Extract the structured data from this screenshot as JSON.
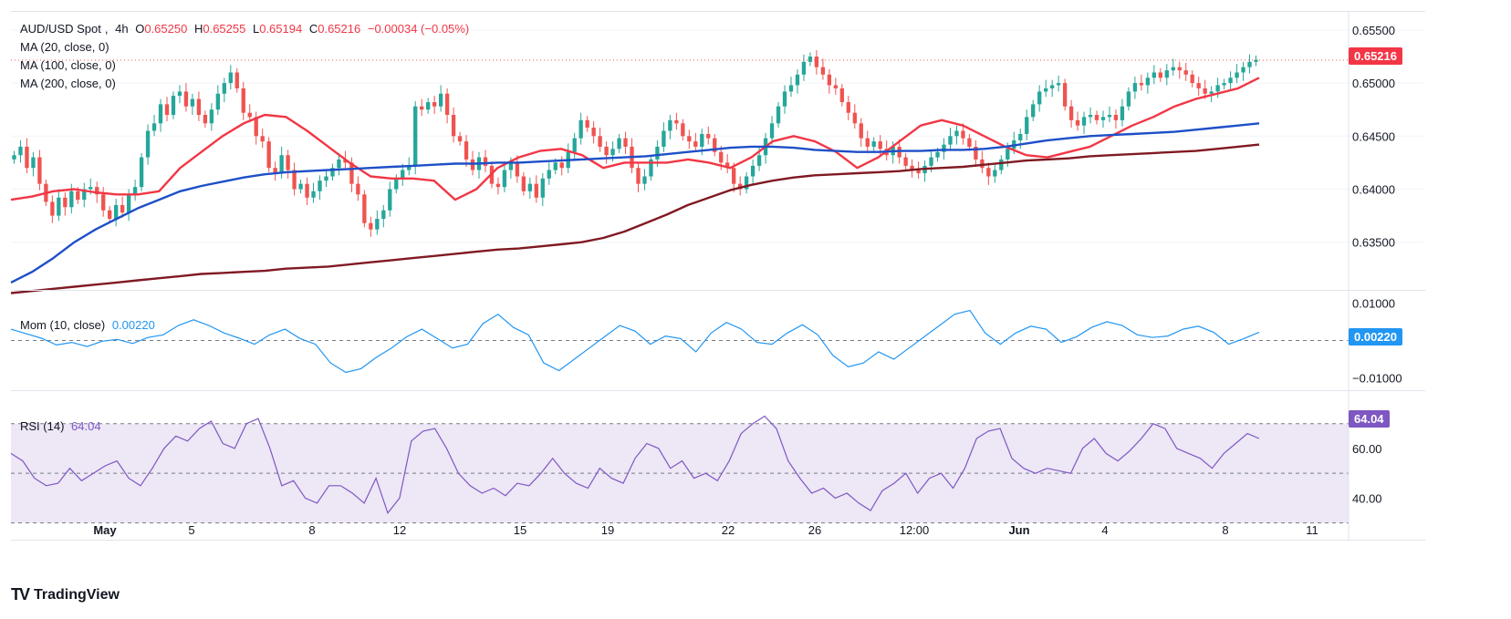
{
  "header": {
    "symbol": "AUD/USD Spot",
    "interval": "4h",
    "open_label": "O",
    "open": "0.65250",
    "high_label": "H",
    "high": "0.65255",
    "low_label": "L",
    "low": "0.65194",
    "close_label": "C",
    "close": "0.65216",
    "change": "−0.00034 (−0.05%)"
  },
  "indicators": {
    "ma20": "MA (20, close, 0)",
    "ma100": "MA (100, close, 0)",
    "ma200": "MA (200, close, 0)",
    "mom_label": "Mom (10, close)",
    "mom_value": "0.00220",
    "rsi_label": "RSI (14)",
    "rsi_value": "64.04"
  },
  "price_tags": {
    "last_price": "0.65216",
    "mom_last": "0.00220",
    "rsi_last": "64.04"
  },
  "brand": {
    "name": "TradingView"
  },
  "colors": {
    "up": "#26a69a",
    "down": "#ef5350",
    "ma20": "#f23645",
    "ma100": "#1e4fc8",
    "ma200": "#801922",
    "momentum": "#2196f3",
    "rsi": "#7e57c2",
    "rsi_band": "#ede7f6"
  },
  "chart_data": [
    {
      "type": "candlestick",
      "title": "AUD/USD Spot, 4h",
      "x_ticks": [
        "May",
        "5",
        "8",
        "12",
        "15",
        "19",
        "22",
        "26",
        "12:00",
        "Jun",
        "4",
        "8",
        "11"
      ],
      "y_ticks": [
        "0.63500",
        "0.64000",
        "0.64500",
        "0.65000",
        "0.65500"
      ],
      "ylim": [
        0.6305,
        0.6568
      ],
      "last_price": 0.65216,
      "closes": [
        0.6432,
        0.644,
        0.642,
        0.643,
        0.6405,
        0.6388,
        0.6375,
        0.6392,
        0.6383,
        0.6398,
        0.639,
        0.64,
        0.6402,
        0.6395,
        0.638,
        0.6372,
        0.6385,
        0.6378,
        0.6395,
        0.6402,
        0.643,
        0.6455,
        0.6462,
        0.648,
        0.647,
        0.6488,
        0.6492,
        0.6478,
        0.6485,
        0.647,
        0.6462,
        0.6475,
        0.649,
        0.65,
        0.651,
        0.6495,
        0.6472,
        0.6468,
        0.645,
        0.6445,
        0.642,
        0.6415,
        0.6432,
        0.6418,
        0.64,
        0.6405,
        0.6392,
        0.6398,
        0.6408,
        0.6412,
        0.642,
        0.6428,
        0.6425,
        0.6405,
        0.6395,
        0.6368,
        0.6362,
        0.6372,
        0.638,
        0.64,
        0.641,
        0.6418,
        0.6422,
        0.6478,
        0.6475,
        0.6482,
        0.6478,
        0.649,
        0.647,
        0.645,
        0.6445,
        0.6428,
        0.6418,
        0.643,
        0.6422,
        0.6405,
        0.6402,
        0.6418,
        0.6425,
        0.6412,
        0.6398,
        0.6405,
        0.6392,
        0.641,
        0.6418,
        0.6425,
        0.642,
        0.6435,
        0.6448,
        0.6465,
        0.6458,
        0.645,
        0.644,
        0.6432,
        0.6438,
        0.6448,
        0.644,
        0.642,
        0.6405,
        0.6412,
        0.6428,
        0.644,
        0.6455,
        0.6465,
        0.6462,
        0.645,
        0.6445,
        0.644,
        0.6452,
        0.6448,
        0.6435,
        0.6425,
        0.642,
        0.6405,
        0.64,
        0.6412,
        0.6422,
        0.6432,
        0.6448,
        0.6462,
        0.6478,
        0.6492,
        0.6498,
        0.6508,
        0.652,
        0.6525,
        0.6515,
        0.6508,
        0.6498,
        0.6495,
        0.6482,
        0.6472,
        0.6462,
        0.6448,
        0.644,
        0.6445,
        0.6438,
        0.6432,
        0.644,
        0.643,
        0.6422,
        0.6418,
        0.6415,
        0.6422,
        0.643,
        0.6435,
        0.6442,
        0.645,
        0.6455,
        0.6448,
        0.644,
        0.6428,
        0.642,
        0.6412,
        0.6418,
        0.6428,
        0.6438,
        0.6446,
        0.6452,
        0.6468,
        0.648,
        0.6492,
        0.6495,
        0.6498,
        0.65,
        0.6478,
        0.6465,
        0.646,
        0.6468,
        0.647,
        0.6465,
        0.6468,
        0.647,
        0.6465,
        0.6478,
        0.6492,
        0.65,
        0.6498,
        0.6505,
        0.651,
        0.6505,
        0.6512,
        0.6515,
        0.6512,
        0.6508,
        0.65,
        0.6495,
        0.649,
        0.6492,
        0.6498,
        0.65,
        0.6505,
        0.651,
        0.6515,
        0.652,
        0.6522
      ],
      "series": [
        {
          "name": "MA (20, close, 0)",
          "values": [
            0.639,
            0.6393,
            0.6398,
            0.64,
            0.6397,
            0.6395,
            0.6395,
            0.6398,
            0.642,
            0.6435,
            0.645,
            0.6462,
            0.647,
            0.6468,
            0.6455,
            0.644,
            0.6425,
            0.6412,
            0.641,
            0.641,
            0.6408,
            0.639,
            0.64,
            0.642,
            0.643,
            0.6436,
            0.6438,
            0.6432,
            0.642,
            0.6425,
            0.6425,
            0.6425,
            0.6428,
            0.6425,
            0.642,
            0.643,
            0.6445,
            0.645,
            0.6445,
            0.6435,
            0.642,
            0.643,
            0.6445,
            0.646,
            0.6465,
            0.646,
            0.645,
            0.644,
            0.6432,
            0.643,
            0.6435,
            0.644,
            0.645,
            0.646,
            0.6468,
            0.6478,
            0.6485,
            0.649,
            0.6495,
            0.6505
          ]
        },
        {
          "name": "MA (100, close, 0)",
          "values": [
            0.6312,
            0.6322,
            0.6335,
            0.635,
            0.6362,
            0.6372,
            0.6382,
            0.639,
            0.6398,
            0.6403,
            0.6407,
            0.6411,
            0.6414,
            0.6416,
            0.6417,
            0.6418,
            0.6419,
            0.642,
            0.6421,
            0.6422,
            0.6423,
            0.6424,
            0.6424,
            0.6425,
            0.6425,
            0.6426,
            0.6427,
            0.6428,
            0.6429,
            0.643,
            0.6431,
            0.6433,
            0.6435,
            0.6437,
            0.6439,
            0.644,
            0.644,
            0.6439,
            0.6437,
            0.6436,
            0.6435,
            0.6435,
            0.6436,
            0.6436,
            0.6437,
            0.6437,
            0.6438,
            0.644,
            0.6443,
            0.6446,
            0.6448,
            0.645,
            0.6451,
            0.6452,
            0.6453,
            0.6454,
            0.6456,
            0.6458,
            0.646,
            0.6462
          ]
        },
        {
          "name": "MA (200, close, 0)",
          "values": [
            0.6302,
            0.6304,
            0.6306,
            0.6308,
            0.631,
            0.6312,
            0.6314,
            0.6316,
            0.6318,
            0.632,
            0.6321,
            0.6322,
            0.6323,
            0.6325,
            0.6326,
            0.6327,
            0.6329,
            0.6331,
            0.6333,
            0.6335,
            0.6337,
            0.6339,
            0.6341,
            0.6343,
            0.6344,
            0.6346,
            0.6348,
            0.635,
            0.6354,
            0.636,
            0.6368,
            0.6376,
            0.6385,
            0.6392,
            0.6399,
            0.6404,
            0.6408,
            0.6411,
            0.6413,
            0.6414,
            0.6415,
            0.6416,
            0.6417,
            0.6419,
            0.642,
            0.6421,
            0.6423,
            0.6425,
            0.6427,
            0.6428,
            0.6429,
            0.6431,
            0.6432,
            0.6433,
            0.6434,
            0.6435,
            0.6436,
            0.6438,
            0.644,
            0.6442
          ]
        }
      ]
    },
    {
      "type": "line",
      "title": "Mom (10, close)",
      "y_ticks": [
        "−0.01000",
        "0.01000"
      ],
      "ylim": [
        -0.0125,
        0.0125
      ],
      "zero_line": 0,
      "series": [
        {
          "name": "Mom (10, close)",
          "values": [
            0.003,
            0.0018,
            0.0006,
            -0.0012,
            -0.0005,
            -0.0016,
            -0.0002,
            0.0003,
            -0.0008,
            0.0008,
            0.0015,
            0.004,
            0.0055,
            0.004,
            0.002,
            0.0006,
            -0.001,
            0.0015,
            0.003,
            0.0005,
            -0.001,
            -0.006,
            -0.0085,
            -0.0075,
            -0.0045,
            -0.002,
            0.001,
            0.003,
            0.0005,
            -0.002,
            -0.001,
            0.0045,
            0.007,
            0.0035,
            0.0015,
            -0.006,
            -0.008,
            -0.005,
            -0.002,
            0.001,
            0.004,
            0.0025,
            -0.001,
            0.0012,
            0.0005,
            -0.003,
            0.002,
            0.0048,
            0.003,
            -0.0005,
            -0.001,
            0.002,
            0.0042,
            0.0015,
            -0.004,
            -0.007,
            -0.006,
            -0.003,
            -0.005,
            -0.002,
            0.001,
            0.004,
            0.007,
            0.008,
            0.002,
            -0.001,
            0.002,
            0.0038,
            0.003,
            -0.0005,
            0.001,
            0.0035,
            0.005,
            0.004,
            0.0015,
            0.0008,
            0.0012,
            0.003,
            0.0038,
            0.0022,
            -0.001,
            0.0005,
            0.0022
          ]
        }
      ]
    },
    {
      "type": "line",
      "title": "RSI (14)",
      "y_ticks": [
        "40.00",
        "60.00"
      ],
      "ylim": [
        24,
        82
      ],
      "bands": [
        30,
        50,
        70
      ],
      "series": [
        {
          "name": "RSI (14)",
          "values": [
            58,
            55,
            48,
            45,
            46,
            52,
            47,
            50,
            53,
            55,
            48,
            45,
            52,
            60,
            65,
            63,
            68,
            71,
            62,
            60,
            70,
            72,
            60,
            45,
            47,
            40,
            38,
            45,
            45,
            42,
            38,
            48,
            34,
            40,
            63,
            67,
            68,
            60,
            50,
            45,
            42,
            44,
            41,
            46,
            45,
            50,
            56,
            50,
            46,
            44,
            52,
            48,
            46,
            56,
            62,
            60,
            52,
            55,
            48,
            50,
            47,
            55,
            66,
            70,
            73,
            68,
            55,
            48,
            42,
            44,
            40,
            42,
            38,
            35,
            43,
            46,
            50,
            42,
            48,
            50,
            44,
            52,
            64,
            67,
            68,
            56,
            52,
            50,
            52,
            51,
            50,
            60,
            64,
            58,
            55,
            59,
            64,
            70,
            68,
            60,
            58,
            56,
            52,
            58,
            62,
            66,
            64
          ]
        }
      ]
    }
  ]
}
